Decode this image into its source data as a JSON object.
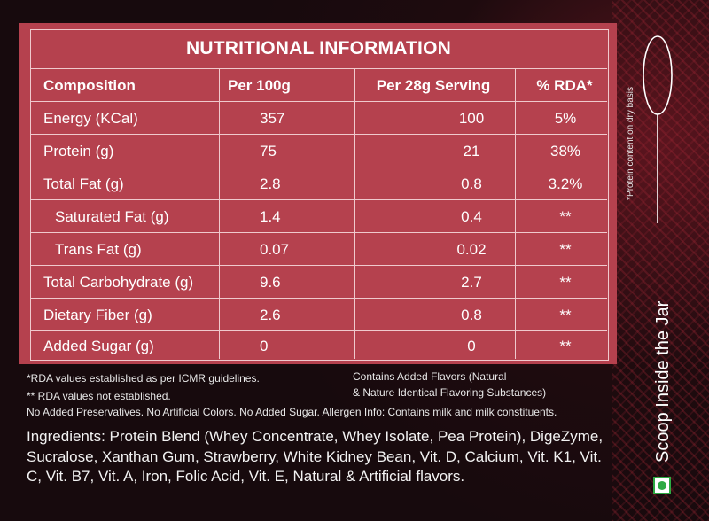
{
  "title": "NUTRITIONAL INFORMATION",
  "headers": [
    "Composition",
    "Per 100g",
    "Per 28g Serving",
    "% RDA*"
  ],
  "rows": [
    {
      "name": "Energy (KCal)",
      "per100": "357",
      "perServing": "100",
      "rda": "5%"
    },
    {
      "name": "Protein (g)",
      "per100": "75",
      "perServing": "21",
      "rda": "38%"
    },
    {
      "name": "Total Fat (g)",
      "per100": "2.8",
      "perServing": "0.8",
      "rda": "3.2%"
    },
    {
      "name": "Saturated Fat (g)",
      "per100": "1.4",
      "perServing": "0.4",
      "rda": "**"
    },
    {
      "name": "Trans Fat (g)",
      "per100": "0.07",
      "perServing": "0.02",
      "rda": "**"
    },
    {
      "name": "Total Carbohydrate (g)",
      "per100": "9.6",
      "perServing": "2.7",
      "rda": "**"
    },
    {
      "name": "Dietary Fiber (g)",
      "per100": "2.6",
      "perServing": "0.8",
      "rda": "**"
    },
    {
      "name": "Added Sugar (g)",
      "per100": "0",
      "perServing": "0",
      "rda": "**"
    }
  ],
  "notes": {
    "rda_established": "*RDA values established as per ICMR guidelines.",
    "rda_not_established": "** RDA values not established.",
    "flavors_line1": "Contains Added Flavors (Natural",
    "flavors_line2": "& Nature Identical Flavoring Substances)",
    "allergen": "No Added Preservatives. No Artificial Colors. No Added Sugar. Allergen Info: Contains milk and milk constituents."
  },
  "ingredients": "Ingredients: Protein Blend (Whey Concentrate, Whey Isolate, Pea Protein), DigeZyme, Sucralose, Xanthan Gum, Strawberry, White Kidney Bean, Vit. D, Calcium, Vit. K1, Vit. C, Vit. B7, Vit. A, Iron, Folic Acid, Vit. E, Natural & Artificial flavors.",
  "side_note": "*Protein content on dry basis",
  "side_title": "Scoop Inside the Jar",
  "colors": {
    "panel": "#b5414e",
    "border": "#f0c9cd",
    "background": "#170a0d",
    "veg_mark": "#2eaa43"
  },
  "icons": [
    "spoon-icon",
    "veg-mark-icon"
  ]
}
